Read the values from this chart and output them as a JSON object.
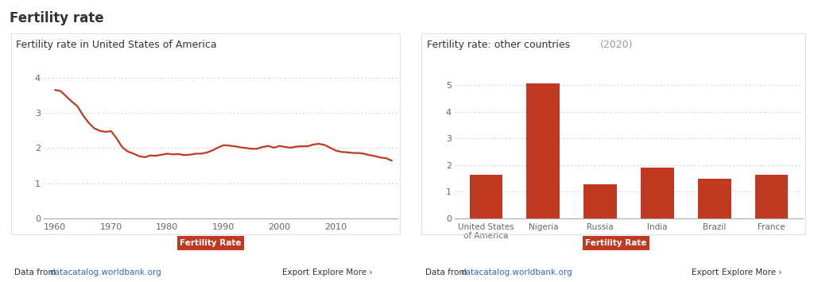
{
  "main_title": "Fertility rate",
  "left_title": "Fertility rate in United States of America",
  "right_title": "Fertility rate: other countries",
  "right_title_year": "(2020)",
  "line_color": "#C03A22",
  "bar_color": "#C03A22",
  "background_color": "#ffffff",
  "panel_background": "#ffffff",
  "grid_color": "#cccccc",
  "years": [
    1960,
    1961,
    1962,
    1963,
    1964,
    1965,
    1966,
    1967,
    1968,
    1969,
    1970,
    1971,
    1972,
    1973,
    1974,
    1975,
    1976,
    1977,
    1978,
    1979,
    1980,
    1981,
    1982,
    1983,
    1984,
    1985,
    1986,
    1987,
    1988,
    1989,
    1990,
    1991,
    1992,
    1993,
    1994,
    1995,
    1996,
    1997,
    1998,
    1999,
    2000,
    2001,
    2002,
    2003,
    2004,
    2005,
    2006,
    2007,
    2008,
    2009,
    2010,
    2011,
    2012,
    2013,
    2014,
    2015,
    2016,
    2017,
    2018,
    2019,
    2020
  ],
  "us_fertility": [
    3.65,
    3.62,
    3.47,
    3.32,
    3.19,
    2.93,
    2.72,
    2.56,
    2.49,
    2.46,
    2.48,
    2.27,
    2.02,
    1.9,
    1.84,
    1.77,
    1.74,
    1.79,
    1.78,
    1.81,
    1.84,
    1.82,
    1.83,
    1.8,
    1.81,
    1.84,
    1.84,
    1.87,
    1.93,
    2.01,
    2.08,
    2.07,
    2.05,
    2.02,
    2.0,
    1.98,
    1.98,
    2.03,
    2.06,
    2.01,
    2.06,
    2.03,
    2.01,
    2.04,
    2.05,
    2.05,
    2.1,
    2.12,
    2.09,
    2.01,
    1.93,
    1.89,
    1.88,
    1.86,
    1.86,
    1.84,
    1.8,
    1.77,
    1.73,
    1.71,
    1.64
  ],
  "bar_countries": [
    "United States\nof America",
    "Nigeria",
    "Russia",
    "India",
    "Brazil",
    "France"
  ],
  "bar_values": [
    1.64,
    5.07,
    1.28,
    1.9,
    1.49,
    1.65
  ],
  "left_ylim": [
    0,
    4.4
  ],
  "left_yticks": [
    0,
    1,
    2,
    3,
    4
  ],
  "right_ylim": [
    0,
    5.8
  ],
  "right_yticks": [
    0,
    1,
    2,
    3,
    4,
    5
  ],
  "legend_label": "Fertility Rate",
  "legend_bg": "#C03A22",
  "legend_text_color": "#ffffff",
  "footer_link": "datacatalog.worldbank.org",
  "footer_right_export": "Export",
  "footer_right_more": "Explore More ›",
  "border_color": "#e0e0e0",
  "text_color_dark": "#333333",
  "text_color_gray": "#999999",
  "tick_color": "#666666"
}
